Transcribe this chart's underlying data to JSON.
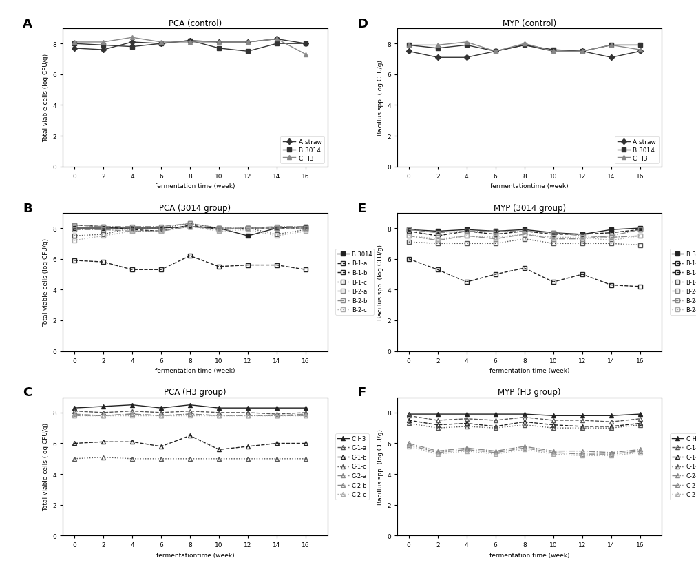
{
  "x": [
    0,
    2,
    4,
    6,
    8,
    10,
    12,
    14,
    16
  ],
  "panel_A": {
    "title": "PCA (control)",
    "ylabel": "Total viable cells (log CFU/g)",
    "xlabel": "fermentation time (week)",
    "label": "A",
    "series": {
      "A straw": [
        7.7,
        7.6,
        8.1,
        8.0,
        8.2,
        8.1,
        8.1,
        8.3,
        8.0
      ],
      "B 3014": [
        8.0,
        7.9,
        7.8,
        8.0,
        8.2,
        7.7,
        7.5,
        8.0,
        8.0
      ],
      "C H3": [
        8.1,
        8.1,
        8.4,
        8.1,
        8.1,
        8.1,
        8.1,
        8.3,
        7.3
      ]
    },
    "markers": {
      "A straw": "D",
      "B 3014": "s",
      "C H3": "^"
    },
    "linestyles": {
      "A straw": "-",
      "B 3014": "-",
      "C H3": "-"
    },
    "colors": {
      "A straw": "#333333",
      "B 3014": "#333333",
      "C H3": "#888888"
    },
    "mfc": {
      "A straw": "#333333",
      "B 3014": "#333333",
      "C H3": "#888888"
    }
  },
  "panel_D": {
    "title": "MYP (control)",
    "ylabel": "Bacillus spp. (log CFU/g)",
    "xlabel": "fermentationtime (week)",
    "label": "D",
    "series": {
      "A straw": [
        7.5,
        7.1,
        7.1,
        7.5,
        7.9,
        7.5,
        7.5,
        7.1,
        7.5
      ],
      "B 3014": [
        7.9,
        7.7,
        7.9,
        7.5,
        7.9,
        7.6,
        7.5,
        7.9,
        7.9
      ],
      "C H3": [
        7.9,
        7.9,
        8.1,
        7.5,
        8.0,
        7.5,
        7.5,
        7.9,
        7.6
      ]
    },
    "markers": {
      "A straw": "D",
      "B 3014": "s",
      "C H3": "^"
    },
    "linestyles": {
      "A straw": "-",
      "B 3014": "-",
      "C H3": "-"
    },
    "colors": {
      "A straw": "#333333",
      "B 3014": "#333333",
      "C H3": "#888888"
    },
    "mfc": {
      "A straw": "#333333",
      "B 3014": "#333333",
      "C H3": "#888888"
    }
  },
  "panel_B": {
    "title": "PCA (3014 group)",
    "ylabel": "Total viable cells (log CFU/g)",
    "xlabel": "fermentation time (week)",
    "label": "B",
    "series": {
      "B 3014": [
        8.0,
        8.0,
        8.0,
        8.0,
        8.1,
        8.0,
        7.5,
        8.0,
        8.1
      ],
      "B-1-a": [
        8.2,
        8.1,
        7.9,
        7.8,
        8.2,
        7.9,
        8.0,
        8.0,
        8.0
      ],
      "B-1-b": [
        5.9,
        5.8,
        5.3,
        5.3,
        6.2,
        5.5,
        5.6,
        5.6,
        5.3
      ],
      "B-1-c": [
        7.5,
        7.6,
        8.0,
        8.0,
        8.3,
        8.0,
        8.0,
        7.6,
        7.9
      ],
      "B-2-a": [
        7.9,
        7.9,
        7.8,
        7.8,
        8.1,
        7.9,
        8.0,
        8.0,
        8.0
      ],
      "B-2-b": [
        8.2,
        8.1,
        8.1,
        8.1,
        8.3,
        8.0,
        8.0,
        8.1,
        8.1
      ],
      "B-2-c": [
        7.2,
        7.5,
        7.8,
        7.8,
        8.1,
        7.8,
        7.9,
        7.5,
        7.8
      ]
    },
    "markers": {
      "B 3014": "s",
      "B-1-a": "s",
      "B-1-b": "s",
      "B-1-c": "s",
      "B-2-a": "s",
      "B-2-b": "s",
      "B-2-c": "s"
    },
    "linestyles": {
      "B 3014": "-",
      "B-1-a": "--",
      "B-1-b": "--",
      "B-1-c": ":",
      "B-2-a": "-.",
      "B-2-b": "-.",
      "B-2-c": ":"
    },
    "colors": {
      "B 3014": "#222222",
      "B-1-a": "#222222",
      "B-1-b": "#222222",
      "B-1-c": "#555555",
      "B-2-a": "#888888",
      "B-2-b": "#888888",
      "B-2-c": "#aaaaaa"
    },
    "mfc": {
      "B 3014": "#222222",
      "B-1-a": "none",
      "B-1-b": "none",
      "B-1-c": "none",
      "B-2-a": "none",
      "B-2-b": "none",
      "B-2-c": "none"
    }
  },
  "panel_E": {
    "title": "MYP (3014 group)",
    "ylabel": "Bacillus spp. (log CFU/g)",
    "xlabel": "fermentation time (week)",
    "label": "E",
    "series": {
      "B 3014": [
        7.9,
        7.8,
        7.9,
        7.8,
        7.9,
        7.7,
        7.6,
        7.9,
        8.0
      ],
      "B-1-a": [
        7.8,
        7.5,
        7.8,
        7.6,
        7.8,
        7.6,
        7.6,
        7.7,
        7.9
      ],
      "B-1-b": [
        6.0,
        5.3,
        4.5,
        5.0,
        5.4,
        4.5,
        5.0,
        4.3,
        4.2
      ],
      "B-1-c": [
        7.1,
        7.0,
        7.0,
        7.0,
        7.3,
        7.0,
        7.0,
        7.0,
        6.9
      ],
      "B-2-a": [
        7.5,
        7.2,
        7.5,
        7.3,
        7.6,
        7.3,
        7.3,
        7.5,
        7.9
      ],
      "B-2-b": [
        7.9,
        7.7,
        7.8,
        7.8,
        7.8,
        7.7,
        7.5,
        7.4,
        7.5
      ],
      "B-2-c": [
        7.5,
        7.3,
        7.5,
        7.4,
        7.6,
        7.4,
        7.4,
        7.2,
        7.5
      ]
    },
    "markers": {
      "B 3014": "s",
      "B-1-a": "s",
      "B-1-b": "s",
      "B-1-c": "s",
      "B-2-a": "s",
      "B-2-b": "s",
      "B-2-c": "s"
    },
    "linestyles": {
      "B 3014": "-",
      "B-1-a": "--",
      "B-1-b": "--",
      "B-1-c": ":",
      "B-2-a": "-.",
      "B-2-b": "-.",
      "B-2-c": ":"
    },
    "colors": {
      "B 3014": "#222222",
      "B-1-a": "#222222",
      "B-1-b": "#222222",
      "B-1-c": "#555555",
      "B-2-a": "#888888",
      "B-2-b": "#888888",
      "B-2-c": "#aaaaaa"
    },
    "mfc": {
      "B 3014": "#222222",
      "B-1-a": "none",
      "B-1-b": "none",
      "B-1-c": "none",
      "B-2-a": "none",
      "B-2-b": "none",
      "B-2-c": "none"
    }
  },
  "panel_C": {
    "title": "PCA (H3 group)",
    "ylabel": "Total viable cells (log CFU/g)",
    "xlabel": "fermentationtime (week)",
    "label": "C",
    "series": {
      "C H3": [
        8.3,
        8.4,
        8.5,
        8.3,
        8.5,
        8.3,
        8.3,
        8.3,
        8.3
      ],
      "C-1-a": [
        8.1,
        8.0,
        8.1,
        8.0,
        8.1,
        8.0,
        8.0,
        7.9,
        8.0
      ],
      "C-1-b": [
        6.0,
        6.1,
        6.1,
        5.8,
        6.5,
        5.6,
        5.8,
        6.0,
        6.0
      ],
      "C-1-c": [
        5.0,
        5.1,
        5.0,
        5.0,
        5.0,
        5.0,
        5.0,
        5.0,
        5.0
      ],
      "C-2-a": [
        7.8,
        7.8,
        7.9,
        7.8,
        7.9,
        7.8,
        7.8,
        7.8,
        7.8
      ],
      "C-2-b": [
        7.9,
        7.8,
        7.9,
        7.8,
        7.9,
        7.8,
        7.8,
        7.8,
        7.9
      ],
      "C-2-c": [
        7.8,
        7.8,
        7.8,
        7.8,
        7.8,
        7.8,
        7.8,
        7.8,
        7.8
      ]
    },
    "markers": {
      "C H3": "^",
      "C-1-a": "^",
      "C-1-b": "^",
      "C-1-c": "^",
      "C-2-a": "^",
      "C-2-b": "^",
      "C-2-c": "^"
    },
    "linestyles": {
      "C H3": "-",
      "C-1-a": "--",
      "C-1-b": "--",
      "C-1-c": ":",
      "C-2-a": "-.",
      "C-2-b": "-.",
      "C-2-c": ":"
    },
    "colors": {
      "C H3": "#222222",
      "C-1-a": "#555555",
      "C-1-b": "#222222",
      "C-1-c": "#555555",
      "C-2-a": "#888888",
      "C-2-b": "#888888",
      "C-2-c": "#aaaaaa"
    },
    "mfc": {
      "C H3": "#222222",
      "C-1-a": "none",
      "C-1-b": "none",
      "C-1-c": "none",
      "C-2-a": "none",
      "C-2-b": "none",
      "C-2-c": "none"
    }
  },
  "panel_F": {
    "title": "MYP (H3 group)",
    "ylabel": "Bacillus spp. (log CFU/g)",
    "xlabel": "fermentation time (week)",
    "label": "F",
    "series": {
      "C H3": [
        7.9,
        7.9,
        7.9,
        7.9,
        7.9,
        7.8,
        7.8,
        7.8,
        7.9
      ],
      "C-1-a": [
        7.8,
        7.5,
        7.6,
        7.5,
        7.7,
        7.5,
        7.5,
        7.4,
        7.6
      ],
      "C-1-b": [
        7.5,
        7.2,
        7.3,
        7.1,
        7.4,
        7.2,
        7.1,
        7.1,
        7.3
      ],
      "C-1-c": [
        7.3,
        7.0,
        7.1,
        7.0,
        7.2,
        7.0,
        7.0,
        7.0,
        7.2
      ],
      "C-2-a": [
        6.0,
        5.5,
        5.7,
        5.5,
        5.8,
        5.5,
        5.5,
        5.4,
        5.6
      ],
      "C-2-b": [
        5.9,
        5.4,
        5.6,
        5.4,
        5.7,
        5.4,
        5.3,
        5.3,
        5.5
      ],
      "C-2-c": [
        5.8,
        5.3,
        5.5,
        5.3,
        5.6,
        5.3,
        5.2,
        5.2,
        5.4
      ]
    },
    "markers": {
      "C H3": "^",
      "C-1-a": "^",
      "C-1-b": "^",
      "C-1-c": "^",
      "C-2-a": "^",
      "C-2-b": "^",
      "C-2-c": "^"
    },
    "linestyles": {
      "C H3": "-",
      "C-1-a": "--",
      "C-1-b": "--",
      "C-1-c": ":",
      "C-2-a": "-.",
      "C-2-b": "-.",
      "C-2-c": ":"
    },
    "colors": {
      "C H3": "#222222",
      "C-1-a": "#555555",
      "C-1-b": "#222222",
      "C-1-c": "#555555",
      "C-2-a": "#888888",
      "C-2-b": "#888888",
      "C-2-c": "#aaaaaa"
    },
    "mfc": {
      "C H3": "#222222",
      "C-1-a": "none",
      "C-1-b": "none",
      "C-1-c": "none",
      "C-2-a": "none",
      "C-2-b": "none",
      "C-2-c": "none"
    }
  },
  "ylim": [
    0,
    9
  ],
  "yticks": [
    0,
    2,
    4,
    6,
    8
  ],
  "xticks": [
    0,
    2,
    4,
    6,
    8,
    10,
    12,
    14,
    16
  ],
  "fig_bg": "white"
}
